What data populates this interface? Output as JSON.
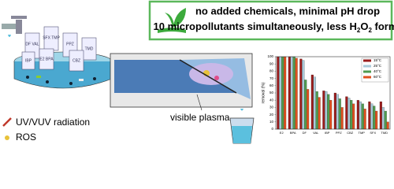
{
  "header": {
    "line1": "no added chemicals, minimal pH drop",
    "line2": [
      "10 micropollutants simultaneously, less H",
      "2",
      "O",
      "2",
      " formation"
    ]
  },
  "bottles": [
    "SFX TMP",
    "DF VAL",
    "PPZ",
    "TMD",
    "E2 BPA",
    "CBZ",
    "IBP"
  ],
  "labels": {
    "uv": "UV/VUV radiation",
    "ros": "ROS",
    "plasma": "visible plasma"
  },
  "chart_data": {
    "type": "bar",
    "ylabel": "removal (%)",
    "categories": [
      "E2",
      "BPA",
      "DF",
      "VAL",
      "IBP",
      "PPZ",
      "CBZ",
      "TMP",
      "SFX",
      "TMD"
    ],
    "series": [
      {
        "name": "15°C",
        "color": "#9b1c1c",
        "values": [
          100,
          100,
          97,
          75,
          53,
          50,
          45,
          40,
          38,
          38
        ]
      },
      {
        "name": "25°C",
        "color": "#a9c9d9",
        "values": [
          100,
          100,
          95,
          72,
          52,
          48,
          43,
          38,
          35,
          30
        ]
      },
      {
        "name": "40°C",
        "color": "#4f9a4f",
        "values": [
          100,
          100,
          68,
          52,
          48,
          42,
          40,
          35,
          32,
          25
        ]
      },
      {
        "name": "60°C",
        "color": "#e0501e",
        "values": [
          100,
          98,
          55,
          44,
          40,
          30,
          35,
          28,
          25,
          10
        ]
      }
    ],
    "ylim": [
      0,
      100
    ],
    "yticks": [
      0,
      10,
      20,
      30,
      40,
      50,
      60,
      70,
      80,
      90,
      100
    ],
    "legend": "upper right"
  }
}
